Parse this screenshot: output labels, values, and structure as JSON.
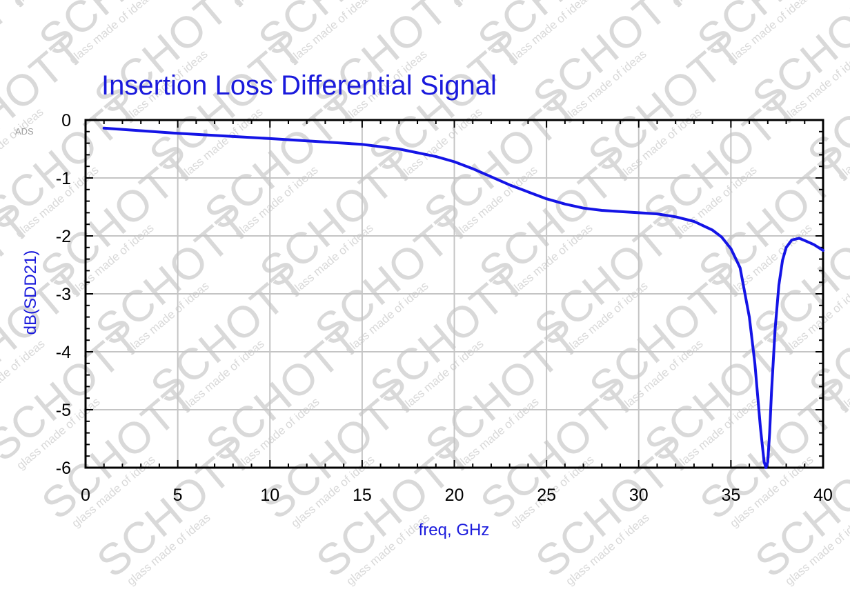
{
  "watermark": {
    "brand": "SCHOTT",
    "tagline": "glass made of ideas",
    "color": "#d9d9d9"
  },
  "tool_tag": "ADS",
  "colors": {
    "trace": "#1414e6",
    "title": "#1a1adc",
    "axis_label": "#1a1adc",
    "grid": "#c4c4c4",
    "frame": "#000000"
  },
  "chart_data": {
    "type": "line",
    "title": "Insertion Loss Differential Signal",
    "xlabel": "freq, GHz",
    "ylabel": "dB(SDD21)",
    "xlim": [
      0,
      40
    ],
    "ylim": [
      -6,
      0
    ],
    "x_ticks": [
      "0",
      "5",
      "10",
      "15",
      "20",
      "25",
      "30",
      "35",
      "40"
    ],
    "y_ticks": [
      "0",
      "-1",
      "-2",
      "-3",
      "-4",
      "-5",
      "-6"
    ],
    "grid": true,
    "series": [
      {
        "x": [
          1,
          5,
          10,
          15,
          17,
          19,
          20,
          21,
          22,
          23,
          24,
          25,
          26,
          27,
          28,
          29,
          30,
          31,
          32,
          33,
          34,
          34.5,
          35,
          35.5,
          36,
          36.3,
          36.6,
          36.8,
          36.9,
          37,
          37.1,
          37.2,
          37.4,
          37.6,
          37.8,
          38,
          38.3,
          38.7,
          39,
          39.5,
          40
        ],
        "y": [
          -0.14,
          -0.23,
          -0.32,
          -0.42,
          -0.5,
          -0.63,
          -0.72,
          -0.84,
          -0.98,
          -1.12,
          -1.24,
          -1.36,
          -1.45,
          -1.52,
          -1.56,
          -1.58,
          -1.6,
          -1.62,
          -1.67,
          -1.75,
          -1.9,
          -2.02,
          -2.22,
          -2.55,
          -3.4,
          -4.2,
          -5.3,
          -5.9,
          -6.0,
          -5.9,
          -5.4,
          -4.7,
          -3.6,
          -2.85,
          -2.42,
          -2.2,
          -2.07,
          -2.04,
          -2.08,
          -2.15,
          -2.25
        ]
      }
    ]
  }
}
